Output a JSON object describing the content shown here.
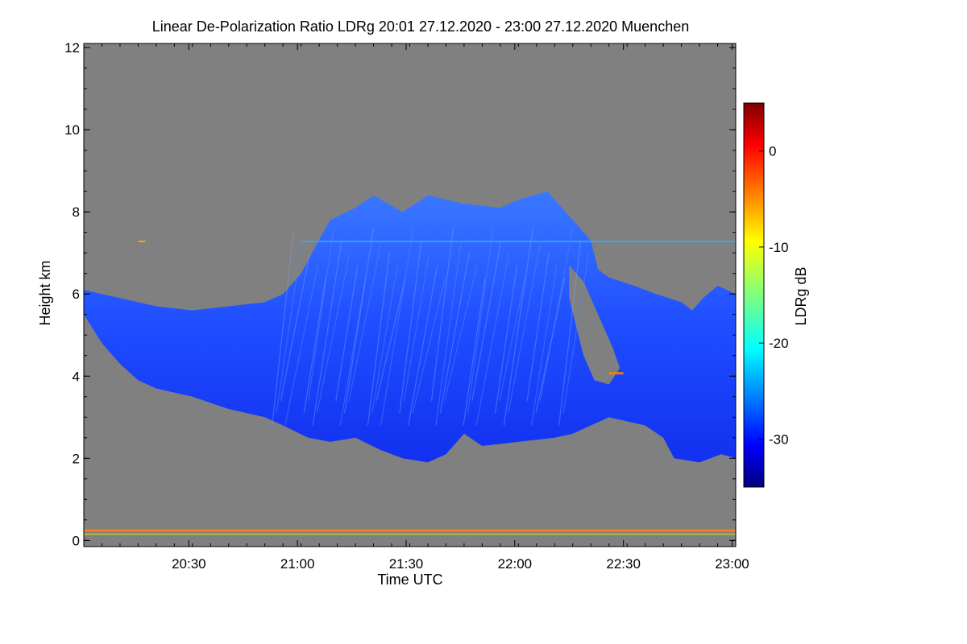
{
  "chart_data": {
    "type": "heatmap",
    "title": "Linear De-Polarization Ratio LDRg   20:01 27.12.2020 - 23:00 27.12.2020 Muenchen",
    "xlabel": "Time UTC",
    "ylabel": "Height km",
    "x_range_minutes": [
      0,
      180
    ],
    "x_range_labels": [
      "20:01",
      "23:00"
    ],
    "x_ticks": [
      {
        "label": "20:30",
        "minutes": 29
      },
      {
        "label": "21:00",
        "minutes": 59
      },
      {
        "label": "21:30",
        "minutes": 89
      },
      {
        "label": "22:00",
        "minutes": 119
      },
      {
        "label": "22:30",
        "minutes": 149
      },
      {
        "label": "23:00",
        "minutes": 179
      }
    ],
    "y_range": [
      -0.15,
      12.1
    ],
    "y_ticks": [
      0,
      2,
      4,
      6,
      8,
      10,
      12
    ],
    "colorbar": {
      "label": "LDRg dB",
      "range": [
        -35,
        5
      ],
      "ticks": [
        0,
        -10,
        -20,
        -30
      ]
    },
    "no_signal_color": "#808080",
    "features": {
      "cloud_top_km": [
        [
          0,
          6.1
        ],
        [
          10,
          5.9
        ],
        [
          20,
          5.7
        ],
        [
          30,
          5.6
        ],
        [
          40,
          5.7
        ],
        [
          50,
          5.8
        ],
        [
          55,
          6.0
        ],
        [
          60,
          6.5
        ],
        [
          63,
          7.0
        ],
        [
          68,
          7.8
        ],
        [
          75,
          8.1
        ],
        [
          80,
          8.4
        ],
        [
          88,
          8.0
        ],
        [
          95,
          8.4
        ],
        [
          105,
          8.2
        ],
        [
          115,
          8.1
        ],
        [
          120,
          8.3
        ],
        [
          128,
          8.5
        ],
        [
          135,
          7.8
        ],
        [
          140,
          7.3
        ],
        [
          142,
          6.6
        ],
        [
          145,
          6.4
        ],
        [
          152,
          6.2
        ],
        [
          158,
          6.0
        ],
        [
          165,
          5.8
        ],
        [
          168,
          5.6
        ],
        [
          171,
          5.9
        ],
        [
          175,
          6.2
        ],
        [
          180,
          6.0
        ]
      ],
      "cloud_base_km": [
        [
          0,
          5.5
        ],
        [
          5,
          4.8
        ],
        [
          10,
          4.3
        ],
        [
          15,
          3.9
        ],
        [
          20,
          3.7
        ],
        [
          30,
          3.5
        ],
        [
          40,
          3.2
        ],
        [
          50,
          3.0
        ],
        [
          55,
          2.8
        ],
        [
          62,
          2.5
        ],
        [
          68,
          2.4
        ],
        [
          75,
          2.5
        ],
        [
          82,
          2.2
        ],
        [
          88,
          2.0
        ],
        [
          95,
          1.9
        ],
        [
          100,
          2.1
        ],
        [
          105,
          2.6
        ],
        [
          110,
          2.3
        ],
        [
          120,
          2.4
        ],
        [
          130,
          2.5
        ],
        [
          135,
          2.6
        ],
        [
          140,
          2.8
        ],
        [
          145,
          3.0
        ],
        [
          150,
          2.9
        ],
        [
          155,
          2.8
        ],
        [
          160,
          2.5
        ],
        [
          163,
          2.0
        ],
        [
          170,
          1.9
        ],
        [
          176,
          2.1
        ],
        [
          180,
          2.0
        ]
      ],
      "gap_polygon": [
        [
          134,
          6.7
        ],
        [
          138,
          6.3
        ],
        [
          142,
          5.5
        ],
        [
          146,
          4.7
        ],
        [
          148,
          4.2
        ],
        [
          145,
          3.8
        ],
        [
          141,
          3.9
        ],
        [
          138,
          4.5
        ],
        [
          136,
          5.2
        ],
        [
          134,
          5.9
        ]
      ],
      "melting_layer_km": 0.25,
      "melting_layer_ldr_db": -6
    }
  }
}
